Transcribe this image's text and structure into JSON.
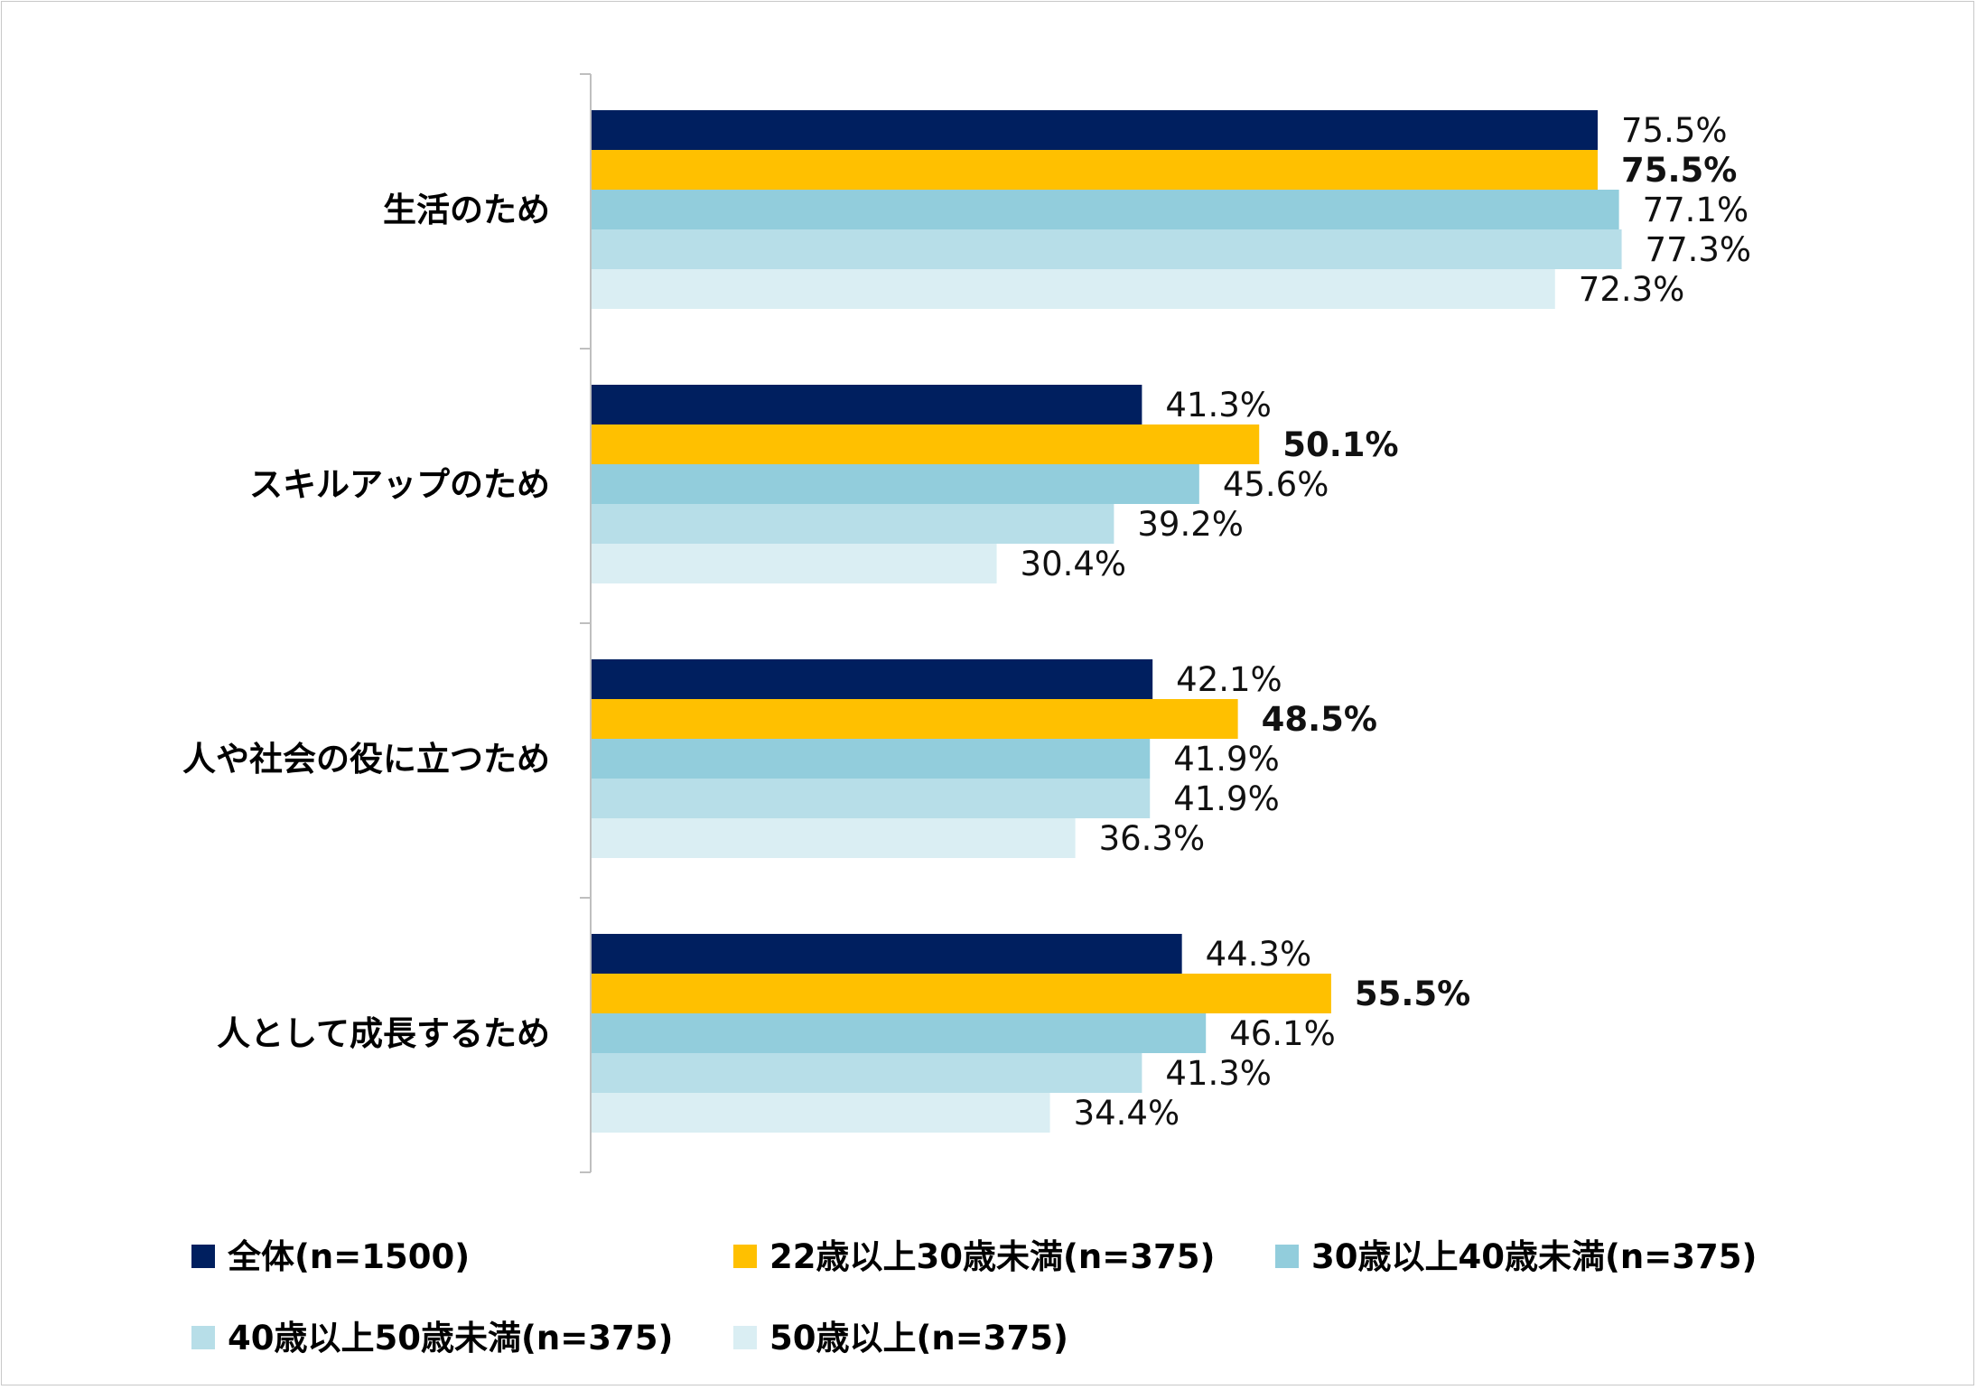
{
  "chart_data": {
    "type": "bar",
    "orientation": "horizontal",
    "categories": [
      "生活のため",
      "スキルアップのため",
      "人や社会の役に立つため",
      "人として成長するため"
    ],
    "series": [
      {
        "name": "全体(n=1500)",
        "color": "#001F5F",
        "values": [
          75.5,
          41.3,
          42.1,
          44.3
        ]
      },
      {
        "name": "22歳以上30歳未満(n=375)",
        "color": "#FFC000",
        "values": [
          75.5,
          50.1,
          48.5,
          55.5
        ]
      },
      {
        "name": "30歳以上40歳未満(n=375)",
        "color": "#92CDDC",
        "values": [
          77.1,
          45.6,
          41.9,
          46.1
        ]
      },
      {
        "name": "40歳以上50歳未満(n=375)",
        "color": "#B7DEE8",
        "values": [
          77.3,
          39.2,
          41.9,
          41.3
        ]
      },
      {
        "name": "50歳以上(n=375)",
        "color": "#DAEEF3",
        "values": [
          72.3,
          30.4,
          36.3,
          34.4
        ]
      }
    ],
    "value_labels": [
      [
        "75.5%",
        "41.3%",
        "42.1%",
        "44.3%"
      ],
      [
        "75.5%",
        "50.1%",
        "48.5%",
        "55.5%"
      ],
      [
        "77.1%",
        "45.6%",
        "41.9%",
        "46.1%"
      ],
      [
        "77.3%",
        "39.2%",
        "41.9%",
        "41.3%"
      ],
      [
        "72.3%",
        "30.4%",
        "36.3%",
        "34.4%"
      ]
    ],
    "highlight": [
      [
        false,
        false,
        false,
        false
      ],
      [
        true,
        true,
        true,
        true
      ],
      [
        false,
        false,
        false,
        false
      ],
      [
        false,
        false,
        false,
        false
      ],
      [
        false,
        false,
        false,
        false
      ]
    ],
    "highlight_colors": [
      [
        null,
        null,
        null,
        null
      ],
      [
        "#000000",
        "#FF0000",
        "#FF0000",
        "#FF0000"
      ],
      [
        null,
        null,
        null,
        null
      ],
      [
        null,
        null,
        null,
        null
      ],
      [
        null,
        null,
        null,
        null
      ]
    ],
    "unit": "%",
    "xlim": [
      0,
      100
    ],
    "grid": false,
    "legend": "bottom",
    "title": "",
    "xlabel": "",
    "ylabel": ""
  }
}
